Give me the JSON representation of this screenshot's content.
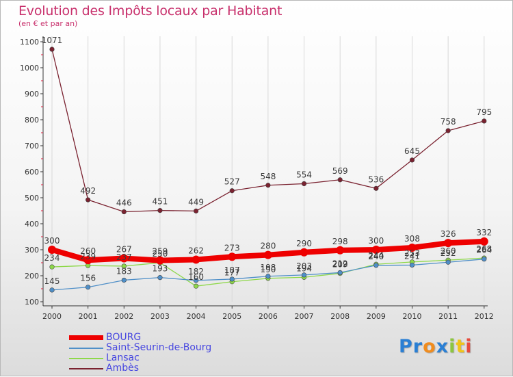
{
  "title": "Evolution des Impôts locaux par Habitant",
  "subtitle": "(en € et par an)",
  "logo": {
    "text": "Proxiti",
    "letters": [
      "P",
      "r",
      "o",
      "x",
      "i",
      "t",
      "i"
    ],
    "colors": [
      "#2a7fd4",
      "#2a7fd4",
      "#f08c1e",
      "#2a7fd4",
      "#8cc63f",
      "#f0c419",
      "#e64a3c"
    ]
  },
  "chart_data": {
    "type": "line",
    "title": "Evolution des Impôts locaux par Habitant",
    "subtitle": "(en € et par an)",
    "xlabel": "",
    "ylabel": "",
    "ylim": [
      100,
      1100
    ],
    "yticks": [
      "100",
      "200",
      "300",
      "400",
      "500",
      "600",
      "700",
      "800",
      "900",
      "1000",
      "1100"
    ],
    "categories": [
      "2000",
      "2001",
      "2002",
      "2003",
      "2004",
      "2005",
      "2006",
      "2007",
      "2008",
      "2009",
      "2010",
      "2011",
      "2012"
    ],
    "legend_position": "bottom-left",
    "series": [
      {
        "name": "Ambès",
        "color": "#7a2230",
        "values": [
          1071,
          492,
          446,
          451,
          449,
          527,
          548,
          554,
          569,
          536,
          645,
          758,
          795
        ],
        "labels": [
          "1071",
          "492",
          "446",
          "451",
          "449",
          "527",
          "548",
          "554",
          "569",
          "536",
          "645",
          "758",
          "795"
        ]
      },
      {
        "name": "Lansac",
        "color": "#8ed84a",
        "values": [
          234,
          239,
          237,
          250,
          160,
          177,
          190,
          194,
          209,
          244,
          253,
          260,
          268
        ],
        "labels": [
          "234",
          "239",
          "237",
          "250",
          "160",
          "177",
          "190",
          "194",
          "209",
          "244",
          "253",
          "260",
          "268"
        ]
      },
      {
        "name": "Saint-Seurin-de-Bourg",
        "color": "#4f8fc8",
        "values": [
          145,
          156,
          183,
          193,
          182,
          187,
          198,
          203,
          212,
          240,
          241,
          252,
          264
        ],
        "labels": [
          "145",
          "156",
          "183",
          "193",
          "182",
          "187",
          "198",
          "203",
          "212",
          "240",
          "241",
          "252",
          "264"
        ]
      },
      {
        "name": "BOURG",
        "color": "#ee0000",
        "values": [
          300,
          260,
          267,
          259,
          262,
          273,
          280,
          290,
          298,
          300,
          308,
          326,
          332
        ],
        "labels": [
          "300",
          "260",
          "267",
          "259",
          "262",
          "273",
          "280",
          "290",
          "298",
          "300",
          "308",
          "326",
          "332"
        ]
      }
    ],
    "legend": [
      {
        "name": "BOURG",
        "color": "#ee0000"
      },
      {
        "name": "Saint-Seurin-de-Bourg",
        "color": "#4f8fc8"
      },
      {
        "name": "Lansac",
        "color": "#8ed84a"
      },
      {
        "name": "Ambès",
        "color": "#7a2230"
      }
    ]
  }
}
